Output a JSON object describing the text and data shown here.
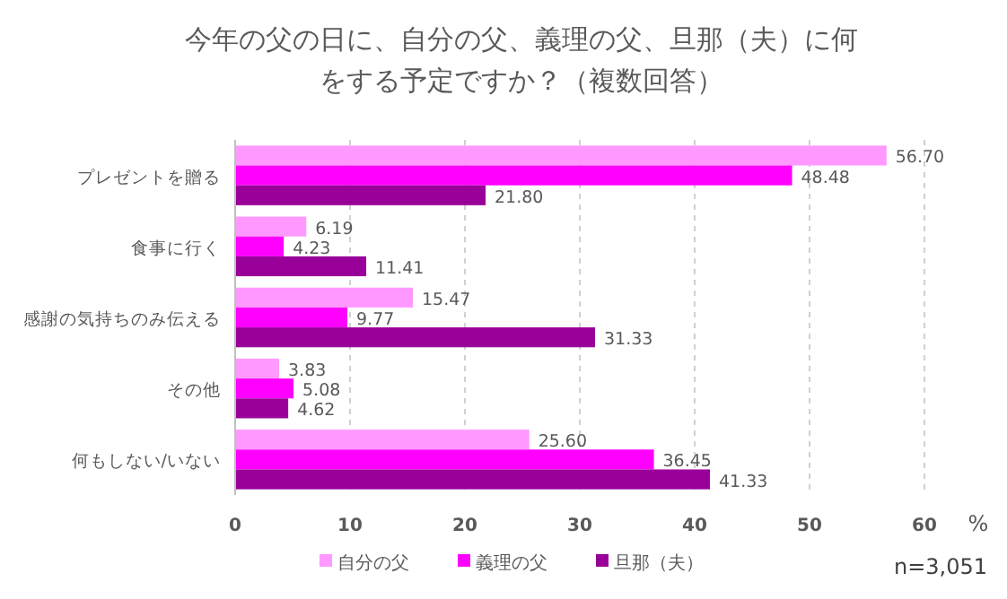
{
  "chart_data": {
    "type": "bar",
    "orientation": "horizontal",
    "title": "今年の父の日に、自分の父、義理の父、旦那（夫）に何をする予定ですか？（複数回答）",
    "categories": [
      "プレゼントを贈る",
      "食事に行く",
      "感謝の気持ちのみ伝える",
      "その他",
      "何もしない/いない"
    ],
    "series": [
      {
        "name": "自分の父",
        "color": "#ff99ff",
        "values": [
          56.7,
          6.19,
          15.47,
          3.83,
          25.6
        ],
        "value_labels": [
          "56.70",
          "6.19",
          "15.47",
          "3.83",
          "25.60"
        ]
      },
      {
        "name": "義理の父",
        "color": "#ff00ff",
        "values": [
          48.48,
          4.23,
          9.77,
          5.08,
          36.45
        ],
        "value_labels": [
          "48.48",
          "4.23",
          "9.77",
          "5.08",
          "36.45"
        ]
      },
      {
        "name": "旦那（夫）",
        "color": "#990099",
        "values": [
          21.8,
          11.41,
          31.33,
          4.62,
          41.33
        ],
        "value_labels": [
          "21.80",
          "11.41",
          "31.33",
          "4.62",
          "41.33"
        ]
      }
    ],
    "xlim": [
      0,
      60
    ],
    "xticks": [
      0,
      10,
      20,
      30,
      40,
      50,
      60
    ],
    "xlabel": "%",
    "grid": "x",
    "legend": "bottom",
    "annotations": [
      "n=3,051"
    ]
  }
}
